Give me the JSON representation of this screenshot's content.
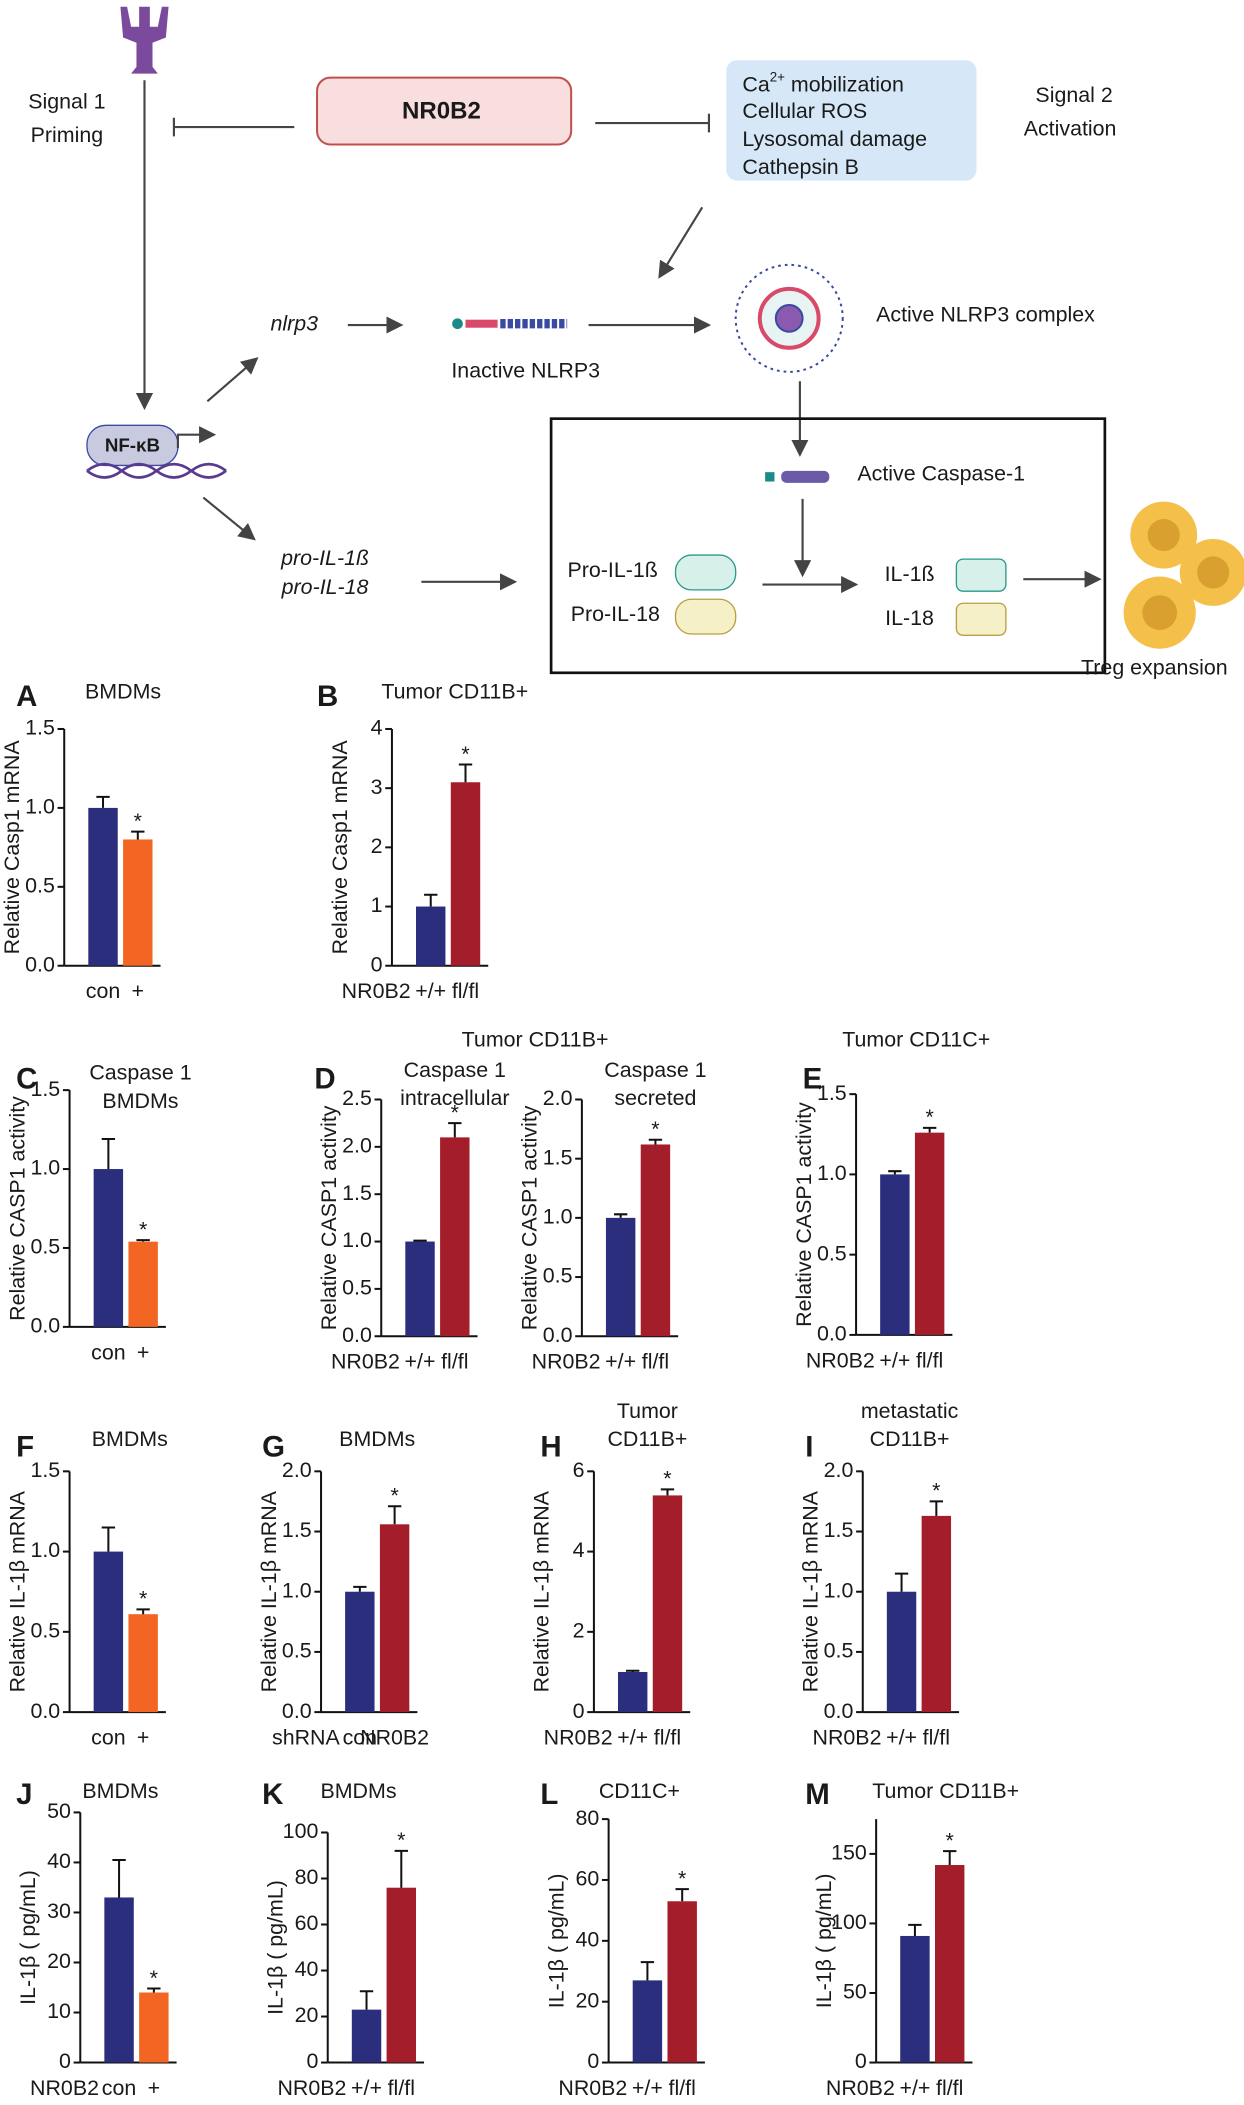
{
  "diagram": {
    "signal1": "Signal 1",
    "priming": "Priming",
    "nr0b2": "NR0B2",
    "ca": {
      "base": "Ca",
      "sup": "2+",
      "rest": " mobilization"
    },
    "ros": "Cellular ROS",
    "lyso": "Lysosomal damage",
    "cathepsin": "Cathepsin B",
    "signal2": "Signal 2",
    "activation": "Activation",
    "nlrp3": "nlrp3",
    "inactive": "Inactive NLRP3",
    "active_complex": "Active NLRP3 complex",
    "nfkb": "NF-κB",
    "caspase": "Active Caspase-1",
    "pro_il1b_gene": "pro-IL-1ß",
    "pro_il18_gene": "pro-IL-18",
    "pro_il1b": "Pro-IL-1ß",
    "pro_il18": "Pro-IL-18",
    "il1b": "IL-1ß",
    "il18": "IL-18",
    "treg": "Treg expansion"
  },
  "chart_data": [
    {
      "type": "bar",
      "panel": "A",
      "title": "BMDMs",
      "ylabel": "Relative Casp1 mRNA",
      "categories": [
        "con",
        "+"
      ],
      "values": [
        1.0,
        0.8
      ],
      "errors": [
        0.07,
        0.05
      ],
      "colors": [
        "#2b2d7d",
        "#f26522"
      ],
      "annotation": "*",
      "ylim": [
        0,
        1.5
      ],
      "yticks": [
        {
          "value": 0,
          "label": "0.0"
        },
        {
          "value": 0.5,
          "label": "0.5"
        },
        {
          "value": 1,
          "label": "1.0"
        },
        {
          "value": 1.5,
          "label": "1.5"
        }
      ]
    },
    {
      "type": "bar",
      "panel": "B",
      "title": "Tumor CD11B+",
      "ylabel": "Relative Casp1 mRNA",
      "group_label": "NR0B2",
      "categories": [
        "+/+",
        "fl/fl"
      ],
      "values": [
        1.0,
        3.1
      ],
      "errors": [
        0.2,
        0.3
      ],
      "colors": [
        "#2b2d7d",
        "#a31e2a"
      ],
      "annotation": "*",
      "ylim": [
        0,
        4
      ],
      "yticks": [
        0,
        1,
        2,
        3,
        4
      ]
    },
    {
      "type": "bar",
      "panel": "C",
      "title": "Caspase 1",
      "subtitle": "BMDMs",
      "ylabel": "Relative CASP1 activity",
      "categories": [
        "con",
        "+"
      ],
      "values": [
        1.0,
        0.54
      ],
      "errors": [
        0.19,
        0.01
      ],
      "colors": [
        "#2b2d7d",
        "#f26522"
      ],
      "annotation": "*",
      "ylim": [
        0,
        1.5
      ],
      "yticks": [
        {
          "value": 0,
          "label": "0.0"
        },
        {
          "value": 0.5,
          "label": "0.5"
        },
        {
          "value": 1,
          "label": "1.0"
        },
        {
          "value": 1.5,
          "label": "1.5"
        }
      ]
    },
    {
      "type": "bar",
      "panel": "D",
      "group_title": "Tumor CD11B+",
      "title": "Caspase 1",
      "subtitle": "intracellular",
      "ylabel": "Relative CASP1 activity",
      "group_label": "NR0B2",
      "categories": [
        "+/+",
        "fl/fl"
      ],
      "values": [
        1.0,
        2.1
      ],
      "errors": [
        0.01,
        0.15
      ],
      "colors": [
        "#2b2d7d",
        "#a31e2a"
      ],
      "annotation": "*",
      "ylim": [
        0,
        2.5
      ],
      "yticks": [
        {
          "value": 0,
          "label": "0.0"
        },
        {
          "value": 0.5,
          "label": "0.5"
        },
        {
          "value": 1,
          "label": "1.0"
        },
        {
          "value": 1.5,
          "label": "1.5"
        },
        {
          "value": 2,
          "label": "2.0"
        },
        {
          "value": 2.5,
          "label": "2.5"
        }
      ]
    },
    {
      "type": "bar",
      "title": "Caspase 1",
      "subtitle": "secreted",
      "ylabel": "Relative CASP1 activity",
      "group_label": "NR0B2",
      "categories": [
        "+/+",
        "fl/fl"
      ],
      "values": [
        1.0,
        1.62
      ],
      "errors": [
        0.03,
        0.04
      ],
      "colors": [
        "#2b2d7d",
        "#a31e2a"
      ],
      "annotation": "*",
      "ylim": [
        0,
        2
      ],
      "yticks": [
        {
          "value": 0,
          "label": "0.0"
        },
        {
          "value": 0.5,
          "label": "0.5"
        },
        {
          "value": 1,
          "label": "1.0"
        },
        {
          "value": 1.5,
          "label": "1.5"
        },
        {
          "value": 2,
          "label": "2.0"
        }
      ]
    },
    {
      "type": "bar",
      "panel": "E",
      "title": "Tumor CD11C+",
      "ylabel": "Relative CASP1 activity",
      "group_label": "NR0B2",
      "categories": [
        "+/+",
        "fl/fl"
      ],
      "values": [
        1.0,
        1.26
      ],
      "errors": [
        0.02,
        0.03
      ],
      "colors": [
        "#2b2d7d",
        "#a31e2a"
      ],
      "annotation": "*",
      "ylim": [
        0,
        1.5
      ],
      "yticks": [
        {
          "value": 0,
          "label": "0.0"
        },
        {
          "value": 0.5,
          "label": "0.5"
        },
        {
          "value": 1,
          "label": "1.0"
        },
        {
          "value": 1.5,
          "label": "1.5"
        }
      ]
    },
    {
      "type": "bar",
      "panel": "F",
      "title": "BMDMs",
      "ylabel": "Relative IL-1β mRNA",
      "categories": [
        "con",
        "+"
      ],
      "values": [
        1.0,
        0.61
      ],
      "errors": [
        0.15,
        0.03
      ],
      "colors": [
        "#2b2d7d",
        "#f26522"
      ],
      "annotation": "*",
      "ylim": [
        0,
        1.5
      ],
      "yticks": [
        {
          "value": 0,
          "label": "0.0"
        },
        {
          "value": 0.5,
          "label": "0.5"
        },
        {
          "value": 1,
          "label": "1.0"
        },
        {
          "value": 1.5,
          "label": "1.5"
        }
      ]
    },
    {
      "type": "bar",
      "panel": "G",
      "title": "BMDMs",
      "ylabel": "Relative IL-1β mRNA",
      "group_label": "shRNA",
      "categories": [
        "con",
        "NR0B2"
      ],
      "values": [
        1.0,
        1.56
      ],
      "errors": [
        0.04,
        0.15
      ],
      "colors": [
        "#2b2d7d",
        "#a31e2a"
      ],
      "annotation": "*",
      "ylim": [
        0,
        2
      ],
      "yticks": [
        {
          "value": 0,
          "label": "0.0"
        },
        {
          "value": 0.5,
          "label": "0.5"
        },
        {
          "value": 1,
          "label": "1.0"
        },
        {
          "value": 1.5,
          "label": "1.5"
        },
        {
          "value": 2,
          "label": "2.0"
        }
      ]
    },
    {
      "type": "bar",
      "panel": "H",
      "title": "Tumor",
      "subtitle": "CD11B+",
      "ylabel": "Relative IL-1β mRNA",
      "group_label": "NR0B2",
      "categories": [
        "+/+",
        "fl/fl"
      ],
      "values": [
        1.0,
        5.4
      ],
      "errors": [
        0.03,
        0.15
      ],
      "colors": [
        "#2b2d7d",
        "#a31e2a"
      ],
      "annotation": "*",
      "ylim": [
        0,
        6
      ],
      "yticks": [
        0,
        2,
        4,
        6
      ]
    },
    {
      "type": "bar",
      "panel": "I",
      "title": "metastatic",
      "subtitle": "CD11B+",
      "ylabel": "Relative IL-1β mRNA",
      "group_label": "NR0B2",
      "categories": [
        "+/+",
        "fl/fl"
      ],
      "values": [
        1.0,
        1.63
      ],
      "errors": [
        0.15,
        0.12
      ],
      "colors": [
        "#2b2d7d",
        "#a31e2a"
      ],
      "annotation": "*",
      "ylim": [
        0,
        2
      ],
      "yticks": [
        {
          "value": 0,
          "label": "0.0"
        },
        {
          "value": 0.5,
          "label": "0.5"
        },
        {
          "value": 1,
          "label": "1.0"
        },
        {
          "value": 1.5,
          "label": "1.5"
        },
        {
          "value": 2,
          "label": "2.0"
        }
      ]
    },
    {
      "type": "bar",
      "panel": "J",
      "title": "BMDMs",
      "ylabel": "IL-1β ( pg/mL)",
      "group_label": "NR0B2",
      "categories": [
        "con",
        "+"
      ],
      "values": [
        33,
        14
      ],
      "errors": [
        7.5,
        0.8
      ],
      "colors": [
        "#2b2d7d",
        "#f26522"
      ],
      "annotation": "*",
      "ylim": [
        0,
        50
      ],
      "yticks": [
        0,
        10,
        20,
        30,
        40,
        50
      ]
    },
    {
      "type": "bar",
      "panel": "K",
      "title": "BMDMs",
      "ylabel": "IL-1β ( pg/mL)",
      "group_label": "NR0B2",
      "categories": [
        "+/+",
        "fl/fl"
      ],
      "values": [
        23,
        76
      ],
      "errors": [
        8,
        16
      ],
      "colors": [
        "#2b2d7d",
        "#a31e2a"
      ],
      "annotation": "*",
      "ylim": [
        0,
        100
      ],
      "yticks": [
        0,
        20,
        40,
        60,
        80,
        100
      ]
    },
    {
      "type": "bar",
      "panel": "L",
      "title": "CD11C+",
      "ylabel": "IL-1β ( pg/mL)",
      "group_label": "NR0B2",
      "categories": [
        "+/+",
        "fl/fl"
      ],
      "values": [
        27,
        53
      ],
      "errors": [
        6,
        4
      ],
      "colors": [
        "#2b2d7d",
        "#a31e2a"
      ],
      "annotation": "*",
      "ylim": [
        0,
        80
      ],
      "yticks": [
        0,
        20,
        40,
        60,
        80
      ]
    },
    {
      "type": "bar",
      "panel": "M",
      "title": "Tumor CD11B+",
      "ylabel": "IL-1β ( pg/mL)",
      "group_label": "NR0B2",
      "categories": [
        "+/+",
        "fl/fl"
      ],
      "values": [
        91,
        142
      ],
      "errors": [
        8,
        10
      ],
      "colors": [
        "#2b2d7d",
        "#a31e2a"
      ],
      "annotation": "*",
      "ylim": [
        0,
        175
      ],
      "yticks": [
        0,
        50,
        100,
        150
      ]
    }
  ]
}
